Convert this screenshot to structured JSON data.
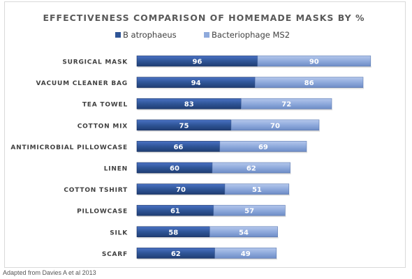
{
  "chart_data": {
    "type": "bar",
    "orientation": "horizontal",
    "stacked": true,
    "title": "EFFECTIVENESS COMPARISON OF HOMEMADE MASKS BY %",
    "legend_position": "top",
    "grid": false,
    "show_x_axis": false,
    "data_labels": true,
    "xlim": [
      0,
      200
    ],
    "categories": [
      "SURGICAL MASK",
      "VACUUM CLEANER BAG",
      "TEA TOWEL",
      "COTTON MIX",
      "ANTIMICROBIAL PILLOWCASE",
      "LINEN",
      "COTTON TSHIRT",
      "PILLOWCASE",
      "SILK",
      "SCARF"
    ],
    "series": [
      {
        "name": "B atrophaeus",
        "color": "#2f5597",
        "values": [
          96,
          94,
          83,
          75,
          66,
          60,
          70,
          61,
          58,
          62
        ]
      },
      {
        "name": "Bacteriophage MS2",
        "color": "#8faadc",
        "values": [
          90,
          86,
          72,
          70,
          69,
          62,
          51,
          57,
          54,
          49
        ]
      }
    ]
  },
  "source_text": "Adapted from Davies A et al 2013"
}
